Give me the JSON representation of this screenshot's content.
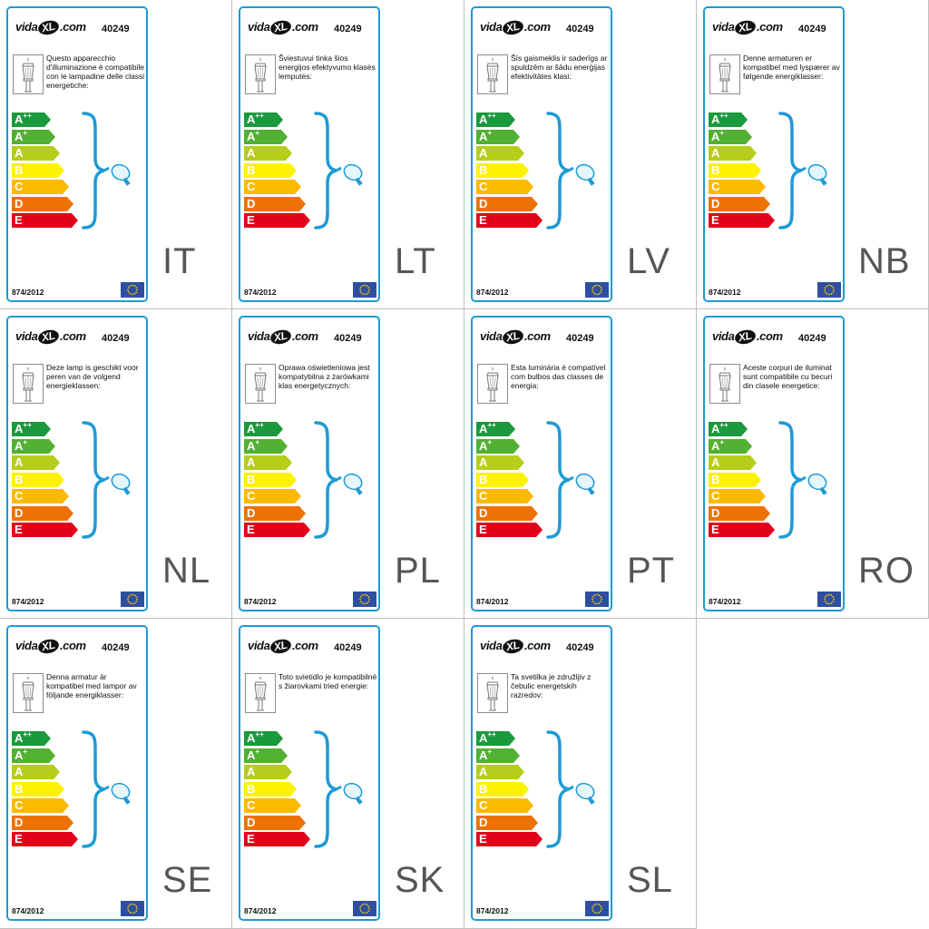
{
  "brand": {
    "prefix": "vida",
    "xl": "XL",
    "suffix": ".com"
  },
  "product_code": "40249",
  "regulation": "874/2012",
  "classes": [
    {
      "letter": "A",
      "sup": "++",
      "color": "#1a9a3c"
    },
    {
      "letter": "A",
      "sup": "+",
      "color": "#52b032"
    },
    {
      "letter": "A",
      "sup": "",
      "color": "#b6cd1c"
    },
    {
      "letter": "B",
      "sup": "",
      "color": "#fff200"
    },
    {
      "letter": "C",
      "sup": "",
      "color": "#fbba00"
    },
    {
      "letter": "D",
      "sup": "",
      "color": "#ee7203"
    },
    {
      "letter": "E",
      "sup": "",
      "color": "#e3001b"
    }
  ],
  "labels": [
    {
      "lang": "IT",
      "text": "Questo apparecchio d'illuminazione è compatibile con le lampadine delle classi energetiche:"
    },
    {
      "lang": "LT",
      "text": "Šviestuvui tinka šios energijos efektyvumo klasės lemputės:"
    },
    {
      "lang": "LV",
      "text": "Šīs gaismeklis ir saderīgs ar spuldzēm ar šādu enerģijas efektivitātes klasi:"
    },
    {
      "lang": "NB",
      "text": "Denne armaturen er kompatibel med lyspærer av følgende energiklasser:"
    },
    {
      "lang": "NL",
      "text": "Deze lamp is geschikt voor peren van de volgend energieklassen:"
    },
    {
      "lang": "PL",
      "text": "Oprawa oświetleniowa jest kompatybilna z żarówkami klas energetycznych:"
    },
    {
      "lang": "PT",
      "text": "Esta luminária é compatível com bulbos das classes de energia:"
    },
    {
      "lang": "RO",
      "text": "Aceste corpuri de iluminat sunt compatibile cu becuri din clasele energetice:"
    },
    {
      "lang": "SE",
      "text": "Denna armatur är kompatibel med lampor av följande energiklasser:"
    },
    {
      "lang": "SK",
      "text": "Toto svietidlo je kompatibilné s žiarovkami tried energie:"
    },
    {
      "lang": "SL",
      "text": "Ta svetilka je združljiv z čebulic energetskih razredov:"
    }
  ],
  "icons": {
    "lamp": "lantern-icon",
    "bulb": "light-bulb-icon",
    "flag": "eu-flag-icon"
  },
  "colors": {
    "card_border": "#1e9ad6",
    "brace": "#1e9ad6",
    "flag_blue": "#2e4fa0",
    "flag_star": "#ffcc00"
  }
}
